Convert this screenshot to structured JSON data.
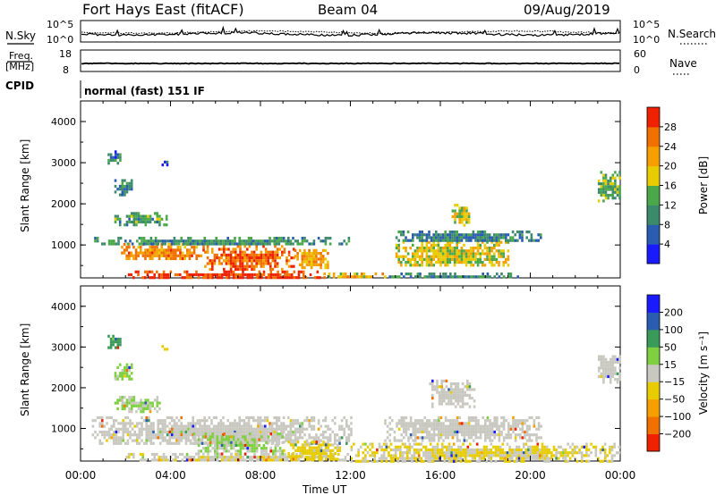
{
  "header": {
    "radar": "Fort Hays East (fitACF)",
    "beam": "Beam 04",
    "date": "09/Aug/2019"
  },
  "top_panels": {
    "nsky_label": "N.Sky",
    "nsky_ticks": [
      "10^5",
      "10^0"
    ],
    "nsearch_label": "N.Search",
    "nsearch_ticks": [
      "10^5",
      "10^0"
    ],
    "freq_label_1": "Freq.",
    "freq_label_2": "[MHz]",
    "freq_ticks": [
      "18",
      "8"
    ],
    "nave_label": "Nave",
    "nave_ticks": [
      "60",
      "0"
    ],
    "cpid_label": "CPID",
    "cpid_value": "normal (fast) 151 IF"
  },
  "chart_data": [
    {
      "type": "heatmap",
      "name": "power",
      "ylabel": "Slant Range [km]",
      "xlabel": "",
      "ylim": [
        200,
        4500
      ],
      "yticks": [
        "4000",
        "3000",
        "2000",
        "1000"
      ],
      "xlim_hours": [
        0,
        24
      ],
      "colorbar": {
        "label": "Power [dB]",
        "ticks": [
          "28",
          "24",
          "20",
          "16",
          "12",
          "8",
          "4"
        ],
        "colors": [
          "#1a1aff",
          "#2a5cb0",
          "#3b8a6b",
          "#4aa84a",
          "#e6cc00",
          "#f5a000",
          "#f07000",
          "#ee2200"
        ],
        "range": [
          0,
          32
        ]
      },
      "regions": [
        {
          "t": [
            2.0,
            10.8
          ],
          "r": [
            200,
            380
          ],
          "value": 29
        },
        {
          "t": [
            10.8,
            13.5
          ],
          "r": [
            200,
            330
          ],
          "value": 20
        },
        {
          "t": [
            13.5,
            19.5
          ],
          "r": [
            200,
            330
          ],
          "value": 10
        },
        {
          "t": [
            1.8,
            5.5
          ],
          "r": [
            650,
            1050
          ],
          "value": 24
        },
        {
          "t": [
            5.5,
            9.5
          ],
          "r": [
            420,
            1000
          ],
          "value": 26
        },
        {
          "t": [
            9.5,
            11.0
          ],
          "r": [
            450,
            900
          ],
          "value": 22
        },
        {
          "t": [
            0.5,
            12.0
          ],
          "r": [
            1000,
            1200
          ],
          "value": 11
        },
        {
          "t": [
            14.0,
            19.0
          ],
          "r": [
            500,
            1100
          ],
          "value": 18
        },
        {
          "t": [
            14.0,
            20.5
          ],
          "r": [
            1100,
            1350
          ],
          "value": 9
        },
        {
          "t": [
            16.5,
            17.3
          ],
          "r": [
            1500,
            2000
          ],
          "value": 17
        },
        {
          "t": [
            1.5,
            3.8
          ],
          "r": [
            1500,
            1800
          ],
          "value": 12
        },
        {
          "t": [
            1.5,
            2.3
          ],
          "r": [
            2200,
            2600
          ],
          "value": 10
        },
        {
          "t": [
            1.2,
            1.8
          ],
          "r": [
            3000,
            3300
          ],
          "value": 8
        },
        {
          "t": [
            23.0,
            24.0
          ],
          "r": [
            2100,
            2800
          ],
          "value": 14
        },
        {
          "t": [
            3.5,
            3.9
          ],
          "r": [
            2950,
            3050
          ],
          "value": 6
        }
      ]
    },
    {
      "type": "heatmap",
      "name": "velocity",
      "ylabel": "Slant Range [km]",
      "xlabel": "Time UT",
      "ylim": [
        200,
        4500
      ],
      "yticks": [
        "4000",
        "3000",
        "2000",
        "1000"
      ],
      "xticks": [
        "00:00",
        "04:00",
        "08:00",
        "12:00",
        "16:00",
        "20:00",
        "00:00"
      ],
      "colorbar": {
        "label": "Velocity [m s⁻¹]",
        "ticks": [
          "200",
          "100",
          "50",
          "15",
          "−15",
          "−50",
          "−100",
          "−200"
        ],
        "colors": [
          "#ee2200",
          "#f07000",
          "#f5a000",
          "#e6cc00",
          "#c8c8c0",
          "#7ed040",
          "#3a9a5a",
          "#2a5cb0",
          "#1a1aff"
        ],
        "range": [
          -250,
          250
        ]
      },
      "regions": [
        {
          "t": [
            0.5,
            12.0
          ],
          "r": [
            600,
            1300
          ],
          "value": 0
        },
        {
          "t": [
            2.0,
            12.0
          ],
          "r": [
            200,
            400
          ],
          "value": -20
        },
        {
          "t": [
            5.0,
            9.0
          ],
          "r": [
            400,
            900
          ],
          "value": 30
        },
        {
          "t": [
            9.0,
            11.5
          ],
          "r": [
            250,
            700
          ],
          "value": -40
        },
        {
          "t": [
            13.5,
            20.5
          ],
          "r": [
            700,
            1300
          ],
          "value": 0
        },
        {
          "t": [
            12.0,
            24.0
          ],
          "r": [
            200,
            650
          ],
          "value": -30
        },
        {
          "t": [
            15.5,
            17.5
          ],
          "r": [
            1500,
            2200
          ],
          "value": 0
        },
        {
          "t": [
            1.5,
            3.5
          ],
          "r": [
            1400,
            1800
          ],
          "value": 30
        },
        {
          "t": [
            1.5,
            2.3
          ],
          "r": [
            2200,
            2600
          ],
          "value": 40
        },
        {
          "t": [
            23.0,
            24.0
          ],
          "r": [
            2100,
            2800
          ],
          "value": 0
        },
        {
          "t": [
            1.2,
            1.8
          ],
          "r": [
            3000,
            3300
          ],
          "value": 100
        },
        {
          "t": [
            3.6,
            3.9
          ],
          "r": [
            2950,
            3050
          ],
          "value": -40
        }
      ]
    }
  ]
}
